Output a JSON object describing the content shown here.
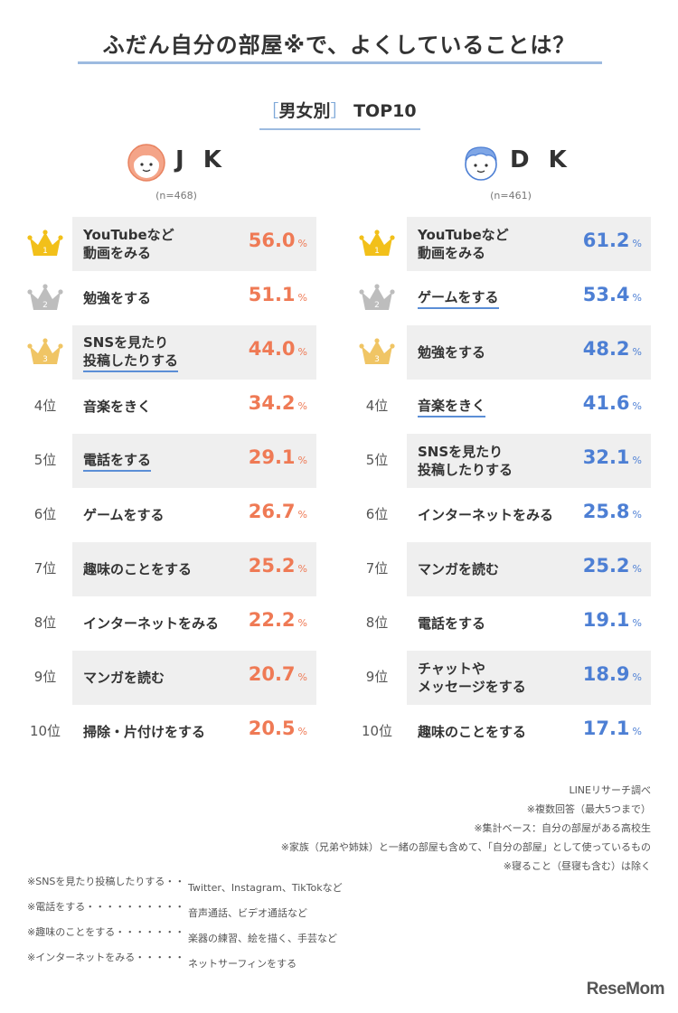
{
  "title": "ふだん自分の部屋※で、よくしていることは？",
  "subtitle": {
    "open": "［",
    "label": "男女別",
    "close": "］",
    "top": "TOP10"
  },
  "colors": {
    "jk": "#ef7a55",
    "dk": "#4d7fd4",
    "gold": "#f2c01a",
    "silver": "#bdbdbd",
    "bronze": "#f0c565",
    "underline": "#5b8ed6"
  },
  "chart_data": [
    {
      "type": "table",
      "group": "J K",
      "n": "(n=468)",
      "unit": "%",
      "ranks": [
        "1",
        "2",
        "3",
        "4位",
        "5位",
        "6位",
        "7位",
        "8位",
        "9位",
        "10位"
      ],
      "categories": [
        "YouTubeなど\n動画をみる",
        "勉強をする",
        "SNSを見たり\n投稿したりする",
        "音楽をきく",
        "電話をする",
        "ゲームをする",
        "趣味のことをする",
        "インターネットをみる",
        "マンガを読む",
        "掃除・片付けをする"
      ],
      "values": [
        "56.0",
        "51.1",
        "44.0",
        "34.2",
        "29.1",
        "26.7",
        "25.2",
        "22.2",
        "20.7",
        "20.5"
      ],
      "underlined": [
        false,
        false,
        true,
        false,
        true,
        false,
        false,
        false,
        false,
        false
      ]
    },
    {
      "type": "table",
      "group": "D K",
      "n": "(n=461)",
      "unit": "%",
      "ranks": [
        "1",
        "2",
        "3",
        "4位",
        "5位",
        "6位",
        "7位",
        "8位",
        "9位",
        "10位"
      ],
      "categories": [
        "YouTubeなど\n動画をみる",
        "ゲームをする",
        "勉強をする",
        "音楽をきく",
        "SNSを見たり\n投稿したりする",
        "インターネットをみる",
        "マンガを読む",
        "電話をする",
        "チャットや\nメッセージをする",
        "趣味のことをする"
      ],
      "values": [
        "61.2",
        "53.4",
        "48.2",
        "41.6",
        "32.1",
        "25.8",
        "25.2",
        "19.1",
        "18.9",
        "17.1"
      ],
      "underlined": [
        false,
        true,
        false,
        true,
        false,
        false,
        false,
        false,
        false,
        false
      ]
    }
  ],
  "notes_right": [
    "LINEリサーチ調べ",
    "※複数回答（最大5つまで）",
    "※集計ベース：自分の部屋がある高校生",
    "※家族（兄弟や姉妹）と一緒の部屋も含めて、「自分の部屋」として使っているもの",
    "※寝ること（昼寝も含む）は除く"
  ],
  "notes_left": [
    {
      "k": "※SNSを見たり投稿したりする・・・・",
      "v": "Twitter、Instagram、TikTokなど"
    },
    {
      "k": "※電話をする・・・・・・・・・・・・・・・・・・・・",
      "v": "音声通話、ビデオ通話など"
    },
    {
      "k": "※趣味のことをする・・・・・・・・・・・・・・",
      "v": "楽器の練習、絵を描く、手芸など"
    },
    {
      "k": "※インターネットをみる・・・・・・・・・・・",
      "v": "ネットサーフィンをする"
    }
  ],
  "logo": "ReseMom"
}
